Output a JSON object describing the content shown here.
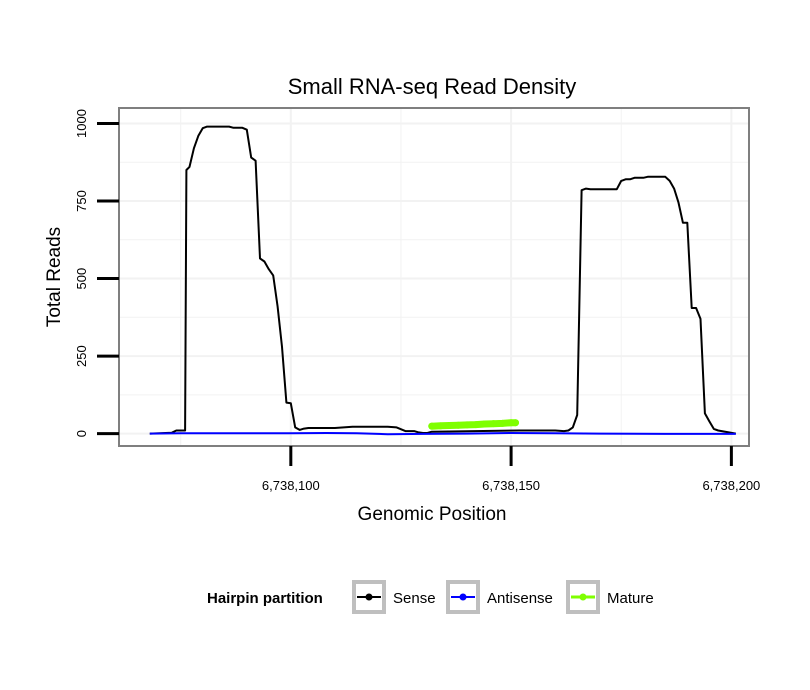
{
  "chart_data": {
    "type": "line",
    "title": "Small RNA-seq Read Density",
    "xlabel": "Genomic Position",
    "ylabel": "Total Reads",
    "xlim": [
      6738061,
      6738204
    ],
    "ylim": [
      -40,
      1050
    ],
    "x_ticks": [
      6738100,
      6738150,
      6738200
    ],
    "x_tick_labels": [
      "6,738,100",
      "6,738,150",
      "6,738,200"
    ],
    "y_ticks": [
      0,
      250,
      500,
      750,
      1000
    ],
    "y_tick_labels": [
      "0",
      "250",
      "500",
      "750",
      "1000"
    ],
    "grid": true,
    "legend_position": "bottom",
    "legend": {
      "title": "Hairpin partition",
      "entries": [
        "Sense",
        "Antisense",
        "Mature"
      ]
    },
    "series": [
      {
        "name": "Sense",
        "color": "#000000",
        "x": [
          6738068,
          6738073,
          6738074,
          6738076,
          6738076.3,
          6738077,
          6738078,
          6738079,
          6738080,
          6738081,
          6738082,
          6738083,
          6738084,
          6738085,
          6738086,
          6738087,
          6738088,
          6738089,
          6738090,
          6738091,
          6738092,
          6738093,
          6738094,
          6738095,
          6738096,
          6738097,
          6738098,
          6738099,
          6738100,
          6738101,
          6738102,
          6738103,
          6738104,
          6738105,
          6738108,
          6738110,
          6738114,
          6738117,
          6738120,
          6738122,
          6738124,
          6738126,
          6738128,
          6738129,
          6738130,
          6738131,
          6738132,
          6738152,
          6738155,
          6738158,
          6738160,
          6738162,
          6738163,
          6738164,
          6738165,
          6738166,
          6738167,
          6738168,
          6738171,
          6738174,
          6738175,
          6738176,
          6738177,
          6738178,
          6738180,
          6738181,
          6738182,
          6738183,
          6738184,
          6738185,
          6738186,
          6738187,
          6738188,
          6738189,
          6738190,
          6738191,
          6738192,
          6738193,
          6738194,
          6738195,
          6738196,
          6738197,
          6738201
        ],
        "values": [
          0,
          3,
          10,
          10,
          850,
          860,
          920,
          960,
          985,
          990,
          990,
          990,
          990,
          990,
          990,
          986,
          986,
          986,
          980,
          890,
          880,
          565,
          555,
          530,
          510,
          410,
          280,
          100,
          98,
          20,
          12,
          16,
          18,
          18,
          18,
          18,
          22,
          22,
          22,
          22,
          20,
          8,
          8,
          4,
          2,
          2,
          6,
          10,
          10,
          10,
          10,
          8,
          10,
          20,
          60,
          785,
          790,
          788,
          788,
          788,
          815,
          820,
          820,
          825,
          825,
          828,
          828,
          828,
          828,
          828,
          815,
          790,
          745,
          680,
          680,
          405,
          405,
          370,
          65,
          40,
          15,
          10,
          0
        ]
      },
      {
        "name": "Antisense",
        "color": "#0000ff",
        "x": [
          6738068,
          6738075,
          6738085,
          6738100,
          6738108,
          6738115,
          6738122,
          6738130,
          6738140,
          6738150,
          6738160,
          6738170,
          6738185,
          6738201
        ],
        "values": [
          0,
          1,
          1,
          1,
          2,
          1,
          -2,
          -1,
          0,
          2,
          1,
          0,
          -1,
          -1
        ]
      },
      {
        "name": "Mature",
        "color": "#7fff00",
        "x": [
          6738132,
          6738134,
          6738136,
          6738138,
          6738140,
          6738142,
          6738144,
          6738146,
          6738148,
          6738150,
          6738151
        ],
        "values": [
          24,
          25,
          26,
          27,
          28,
          29,
          31,
          32,
          33,
          35,
          35
        ]
      }
    ]
  }
}
